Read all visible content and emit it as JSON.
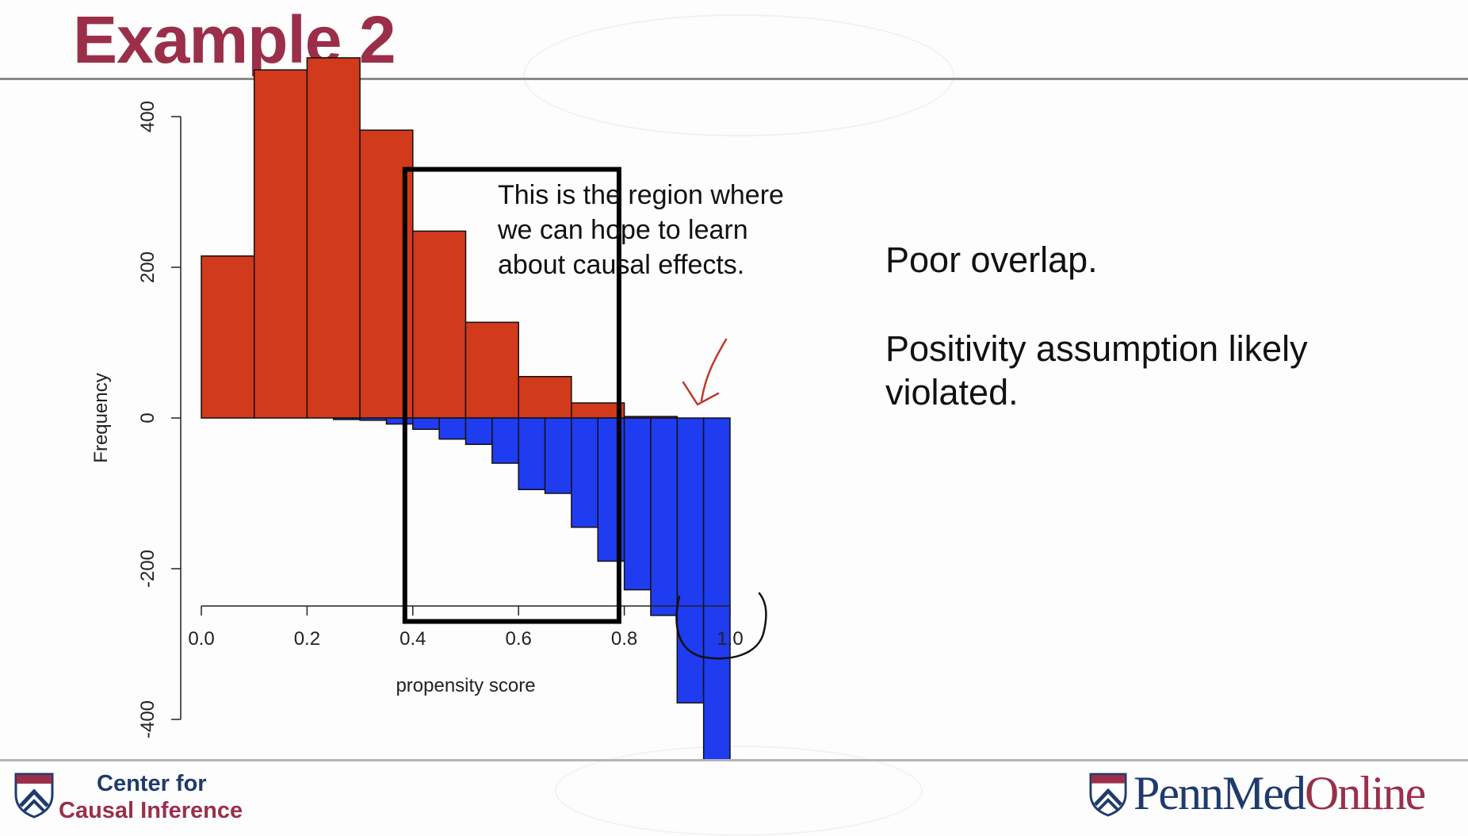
{
  "slide": {
    "title": "Example 2"
  },
  "annotation": {
    "lines": [
      "This is the region where",
      "we can hope to learn",
      "about causal effects."
    ]
  },
  "side_notes": {
    "note1": "Poor overlap.",
    "note2_line1": "Positivity assumption likely",
    "note2_line2": "violated."
  },
  "footer": {
    "left_line1": "Center for",
    "left_line2": "Causal Inference",
    "right_logo_part1": "PennMed",
    "right_logo_part2": "Online"
  },
  "colors": {
    "title": "#9b2f4a",
    "control_bars": "#d23a1c",
    "treated_bars": "#1f3cf0",
    "handwriting": "#c0392b",
    "penn_blue": "#1f3b6e"
  },
  "chart_data": {
    "type": "bar",
    "subtype": "mirrored histogram",
    "xlabel": "propensity score",
    "ylabel": "Frequency",
    "xlim": [
      0.0,
      1.0
    ],
    "ylim": [
      -400,
      400
    ],
    "x_ticks": [
      "0.0",
      "0.2",
      "0.4",
      "0.6",
      "0.8",
      "1.0"
    ],
    "x_tick_values": [
      0.0,
      0.2,
      0.4,
      0.6,
      0.8,
      1.0
    ],
    "y_ticks": [
      "400",
      "200",
      "0",
      "-200",
      "-400"
    ],
    "y_tick_values": [
      400,
      200,
      0,
      -200,
      -400
    ],
    "series": [
      {
        "color": "#d23a1c",
        "bins": [
          {
            "x0": 0.0,
            "x1": 0.1,
            "value": 215
          },
          {
            "x0": 0.1,
            "x1": 0.2,
            "value": 462
          },
          {
            "x0": 0.2,
            "x1": 0.3,
            "value": 478
          },
          {
            "x0": 0.3,
            "x1": 0.4,
            "value": 382
          },
          {
            "x0": 0.4,
            "x1": 0.5,
            "value": 248
          },
          {
            "x0": 0.5,
            "x1": 0.6,
            "value": 127
          },
          {
            "x0": 0.6,
            "x1": 0.7,
            "value": 55
          },
          {
            "x0": 0.7,
            "x1": 0.8,
            "value": 20
          },
          {
            "x0": 0.8,
            "x1": 0.9,
            "value": 2
          }
        ]
      },
      {
        "color": "#1f3cf0",
        "bins": [
          {
            "x0": 0.25,
            "x1": 0.3,
            "value": -2
          },
          {
            "x0": 0.3,
            "x1": 0.35,
            "value": -3
          },
          {
            "x0": 0.35,
            "x1": 0.4,
            "value": -8
          },
          {
            "x0": 0.4,
            "x1": 0.45,
            "value": -15
          },
          {
            "x0": 0.45,
            "x1": 0.5,
            "value": -28
          },
          {
            "x0": 0.5,
            "x1": 0.55,
            "value": -35
          },
          {
            "x0": 0.55,
            "x1": 0.6,
            "value": -60
          },
          {
            "x0": 0.6,
            "x1": 0.65,
            "value": -95
          },
          {
            "x0": 0.65,
            "x1": 0.7,
            "value": -100
          },
          {
            "x0": 0.7,
            "x1": 0.75,
            "value": -145
          },
          {
            "x0": 0.75,
            "x1": 0.8,
            "value": -190
          },
          {
            "x0": 0.8,
            "x1": 0.85,
            "value": -228
          },
          {
            "x0": 0.85,
            "x1": 0.9,
            "value": -262
          },
          {
            "x0": 0.9,
            "x1": 0.95,
            "value": -378
          },
          {
            "x0": 0.95,
            "x1": 1.0,
            "value": -455
          }
        ]
      }
    ],
    "highlight_box": {
      "x0": 0.385,
      "x1": 0.79,
      "y0": -270,
      "y1": 330
    }
  }
}
